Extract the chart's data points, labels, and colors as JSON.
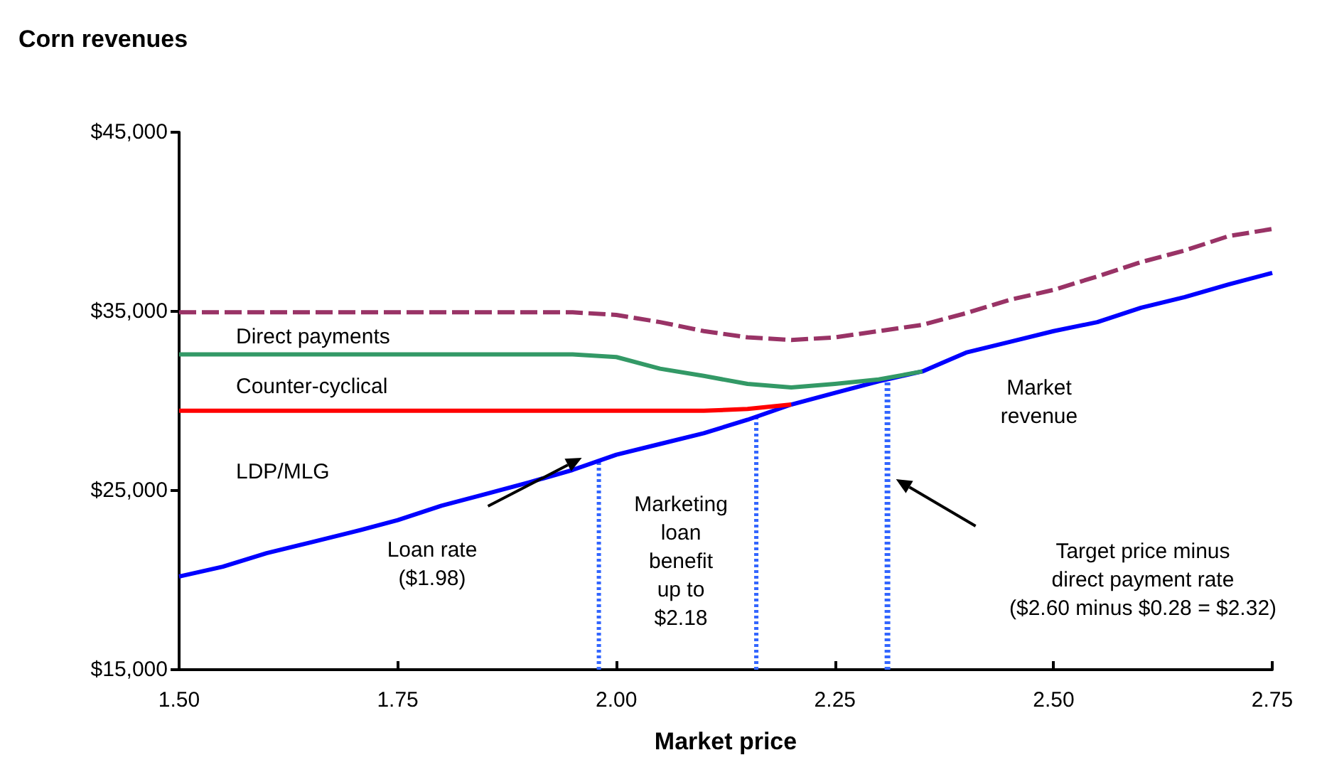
{
  "chart_data": {
    "type": "line",
    "title": "Corn revenues",
    "xlabel": "Market price",
    "xlim": [
      1.5,
      2.75
    ],
    "xticks": [
      {
        "value": 1.5,
        "label": "1.50"
      },
      {
        "value": 1.75,
        "label": "1.75"
      },
      {
        "value": 2.0,
        "label": "2.00"
      },
      {
        "value": 2.25,
        "label": "2.25"
      },
      {
        "value": 2.5,
        "label": "2.50"
      },
      {
        "value": 2.75,
        "label": "2.75"
      }
    ],
    "ylim": [
      15000,
      45000
    ],
    "yticks": [
      {
        "value": 15000,
        "label": "$15,000"
      },
      {
        "value": 25000,
        "label": "$25,000"
      },
      {
        "value": 35000,
        "label": "$35,000"
      },
      {
        "value": 45000,
        "label": "$45,000"
      }
    ],
    "grid": false,
    "marker": "none",
    "series": [
      {
        "color": "#993366",
        "line_style": "dashed",
        "x": [
          1.5,
          1.95,
          2.0,
          2.05,
          2.1,
          2.15,
          2.2,
          2.25,
          2.3,
          2.35,
          2.4,
          2.45,
          2.5,
          2.55,
          2.6,
          2.65,
          2.7,
          2.75
        ],
        "values": [
          34950,
          34950,
          34800,
          34400,
          33900,
          33550,
          33400,
          33550,
          33900,
          34250,
          34900,
          35650,
          36200,
          36950,
          37750,
          38400,
          39200,
          39600
        ]
      },
      {
        "color": "#339966",
        "line_style": "solid",
        "x": [
          1.5,
          1.95,
          2.0,
          2.05,
          2.1,
          2.15,
          2.2,
          2.25,
          2.3,
          2.35
        ],
        "values": [
          32600,
          32600,
          32450,
          31800,
          31400,
          30950,
          30750,
          30950,
          31200,
          31650
        ]
      },
      {
        "color": "#ff0000",
        "line_style": "solid",
        "x": [
          1.5,
          2.1,
          2.15,
          2.2
        ],
        "values": [
          29450,
          29450,
          29550,
          29800
        ]
      },
      {
        "color": "#0000ff",
        "line_style": "solid",
        "x": [
          1.5,
          1.55,
          1.6,
          1.65,
          1.7,
          1.75,
          1.8,
          1.85,
          1.9,
          1.95,
          2.0,
          2.05,
          2.1,
          2.15,
          2.2,
          2.25,
          2.3,
          2.35,
          2.4,
          2.45,
          2.5,
          2.55,
          2.6,
          2.65,
          2.7,
          2.75
        ],
        "values": [
          20200,
          20750,
          21500,
          22100,
          22700,
          23350,
          24150,
          24800,
          25450,
          26150,
          27000,
          27600,
          28200,
          28950,
          29800,
          30450,
          31100,
          31650,
          32700,
          33300,
          33900,
          34400,
          35200,
          35800,
          36500,
          37150
        ]
      }
    ],
    "ref_lines": [
      {
        "axis": "x",
        "value": 1.98,
        "color": "#3366ff",
        "line_style": "dotted"
      },
      {
        "axis": "x",
        "value": 2.16,
        "color": "#3366ff",
        "line_style": "dotted"
      },
      {
        "axis": "x",
        "value": 2.31,
        "color": "#3366ff",
        "line_style": "dotted"
      }
    ],
    "annotations": [
      "Direct payments",
      "Counter-cyclical",
      "LDP/MLG",
      "Market\nrevenue",
      "Loan rate\n($1.98)",
      "Marketing\nloan\nbenefit\nup to\n$2.18",
      "Target price minus\ndirect payment rate\n($2.60 minus $0.28 = $2.32)"
    ]
  }
}
